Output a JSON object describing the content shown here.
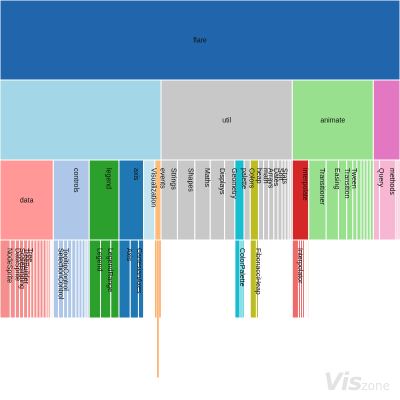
{
  "chart_data": {
    "type": "icicle",
    "root": {
      "name": "flare",
      "children": [
        {
          "name": "",
          "children": [
            {
              "name": "data",
              "value": 52,
              "children": [
                {
                  "name": "NodeSprite",
                  "value": 10
                },
                {
                  "name": "DataSprite",
                  "value": 5
                },
                {
                  "name": "ScaleBinding",
                  "value": 4
                },
                {
                  "name": "TreeBuilder",
                  "value": 4
                },
                {
                  "name": "Tree",
                  "value": 4
                },
                {
                  "name": "",
                  "value": 3
                },
                {
                  "name": "",
                  "value": 3
                },
                {
                  "name": "",
                  "value": 3
                },
                {
                  "name": "",
                  "value": 3
                },
                {
                  "name": "",
                  "value": 3
                },
                {
                  "name": "",
                  "value": 3
                },
                {
                  "name": "",
                  "value": 2
                },
                {
                  "name": "",
                  "value": 2
                },
                {
                  "name": "",
                  "value": 1
                },
                {
                  "name": "",
                  "value": 1
                },
                {
                  "name": "",
                  "value": 1
                }
              ]
            },
            {
              "name": "controls",
              "value": 35,
              "children": [
                {
                  "name": "SelectionControl",
                  "value": 5
                },
                {
                  "name": "TooltipControl",
                  "value": 5
                },
                {
                  "name": "",
                  "value": 4
                },
                {
                  "name": "",
                  "value": 4
                },
                {
                  "name": "",
                  "value": 4
                },
                {
                  "name": "",
                  "value": 3
                },
                {
                  "name": "",
                  "value": 3
                },
                {
                  "name": "",
                  "value": 3
                },
                {
                  "name": "",
                  "value": 2
                },
                {
                  "name": "",
                  "value": 2
                }
              ]
            },
            {
              "name": "legend",
              "value": 29,
              "children": [
                {
                  "name": "Legend",
                  "value": 11
                },
                {
                  "name": "LegendRange",
                  "value": 10
                },
                {
                  "name": "",
                  "value": 8
                }
              ]
            },
            {
              "name": "axis",
              "value": 24,
              "children": [
                {
                  "name": "Axis",
                  "value": 11
                },
                {
                  "name": "CartesianAxes",
                  "value": 8
                },
                {
                  "name": "",
                  "value": 5
                }
              ]
            },
            {
              "name": "Visualization",
              "value": 11,
              "children": []
            },
            {
              "name": "events",
              "value": 6,
              "children": [
                {
                  "name": "",
                  "value": 2
                },
                {
                  "name": "",
                  "value": 2
                },
                {
                  "name": "",
                  "value": 2
                }
              ]
            }
          ]
        },
        {
          "name": "util",
          "children": [
            {
              "name": "Strings",
              "value": 16,
              "children": []
            },
            {
              "name": "Shapes",
              "value": 17,
              "children": []
            },
            {
              "name": "Maths",
              "value": 15,
              "children": []
            },
            {
              "name": "Displays",
              "value": 14,
              "children": []
            },
            {
              "name": "Geometry",
              "value": 10,
              "children": []
            },
            {
              "name": "palette",
              "value": 9,
              "children": [
                {
                  "name": "ColorPalette",
                  "value": 5
                },
                {
                  "name": "",
                  "value": 2
                },
                {
                  "name": "",
                  "value": 2
                }
              ]
            },
            {
              "name": "Colors",
              "value": 6,
              "children": []
            },
            {
              "name": "heap",
              "value": 8,
              "children": [
                {
                  "name": "FibonacciHeap",
                  "value": 6
                },
                {
                  "name": "",
                  "value": 2
                }
              ]
            },
            {
              "name": "math",
              "value": 5,
              "children": []
            },
            {
              "name": "Arrays",
              "value": 5,
              "children": []
            },
            {
              "name": "Dates",
              "value": 5,
              "children": []
            },
            {
              "name": "Sort",
              "value": 4,
              "children": []
            },
            {
              "name": "Stats",
              "value": 4,
              "children": []
            },
            {
              "name": "",
              "value": 3,
              "children": []
            },
            {
              "name": "",
              "value": 3,
              "children": []
            },
            {
              "name": "",
              "value": 2,
              "children": []
            },
            {
              "name": "",
              "value": 2,
              "children": []
            }
          ]
        },
        {
          "name": "animate",
          "children": [
            {
              "name": "interpolate",
              "value": 16,
              "children": [
                {
                  "name": "Interpolator",
                  "value": 6
                },
                {
                  "name": "",
                  "value": 2
                },
                {
                  "name": "",
                  "value": 2
                },
                {
                  "name": "",
                  "value": 2
                },
                {
                  "name": "",
                  "value": 1
                },
                {
                  "name": "",
                  "value": 1
                },
                {
                  "name": "",
                  "value": 1
                },
                {
                  "name": "",
                  "value": 1
                }
              ]
            },
            {
              "name": "Transitioner",
              "value": 17,
              "children": []
            },
            {
              "name": "Easing",
              "value": 12,
              "children": []
            },
            {
              "name": "Transition",
              "value": 8,
              "children": []
            },
            {
              "name": "Tween",
              "value": 6,
              "children": []
            },
            {
              "name": "",
              "value": 4,
              "children": []
            },
            {
              "name": "",
              "value": 4,
              "children": []
            },
            {
              "name": "",
              "value": 3,
              "children": []
            },
            {
              "name": "",
              "value": 3,
              "children": []
            },
            {
              "name": "",
              "value": 3,
              "children": []
            },
            {
              "name": "",
              "value": 3,
              "children": []
            }
          ]
        },
        {
          "name": "",
          "children": [
            {
              "name": "Query",
              "value": 6,
              "children": []
            },
            {
              "name": "methods",
              "value": 16,
              "children": []
            },
            {
              "name": "",
              "value": 2,
              "children": []
            },
            {
              "name": "",
              "value": 2,
              "children": []
            }
          ]
        }
      ]
    },
    "colors": {
      "flare": "#2166ac",
      "group_vis": "#a3d6e6",
      "util": "#c8c8c8",
      "animate": "#98e08e",
      "group_pink": "#e377c2",
      "data": "#ff9896",
      "data_deep": "#f58f8d",
      "controls": "#aec7e8",
      "legend": "#2ca02c",
      "axis": "#1f77b4",
      "visualization": "#c5e4f0",
      "events": "#ffbb78",
      "events_deep": "#ff7f0e",
      "palette": "#17becf",
      "heap": "#bcbd22",
      "interpolate": "#d62728",
      "interpolate_light": "#ef6a6a",
      "pink_light": "#f7b6d2"
    },
    "watermark": {
      "big": "Vis",
      "small": "zone"
    }
  }
}
